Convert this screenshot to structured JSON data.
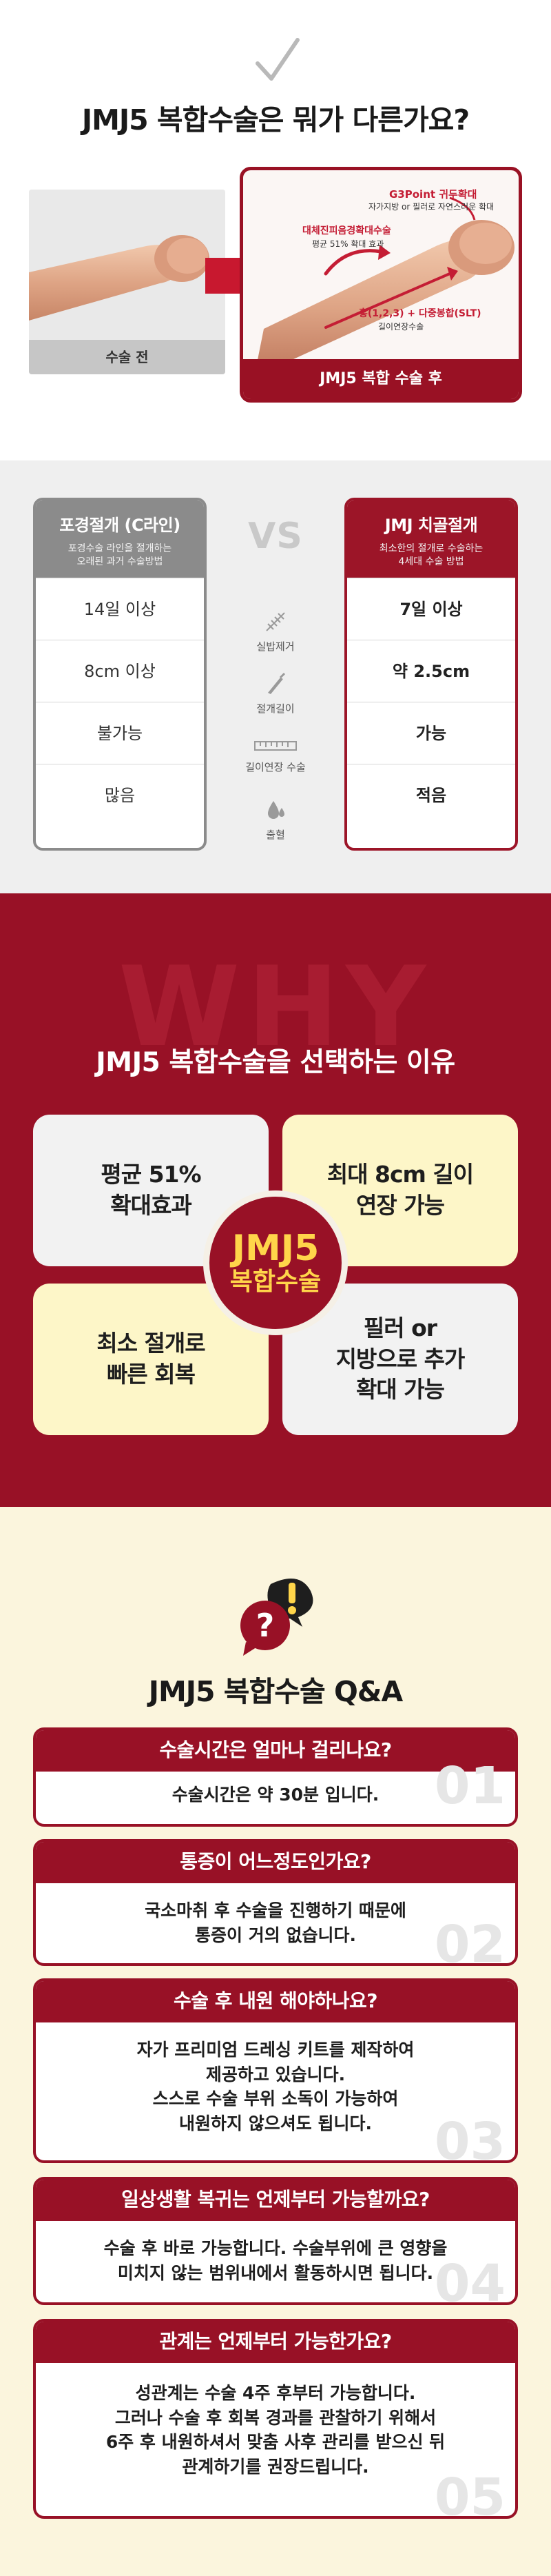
{
  "section1": {
    "title": "JMJ5 복합수술은 뭐가 다른가요?",
    "before_label": "수술 전",
    "after_label": "JMJ5 복합 수술 후",
    "annotations": {
      "g3point": "G3Point 귀두확대",
      "g3point_sub": "자가지방 or 필러로 자연스러운 확대",
      "dermal": "대체진피음경확대수술",
      "dermal_sub": "평균 51% 확대 효과",
      "slt": "홍(1,2,3) + 다중봉합(SLT)",
      "slt_sub": "길이연장수술"
    }
  },
  "section2": {
    "left": {
      "title": "포경절개 (C라인)",
      "subtitle_line1": "포경수술 라인을 절개하는",
      "subtitle_line2": "오래된 과거 수술방법",
      "rows": [
        "14일 이상",
        "8cm 이상",
        "불가능",
        "많음"
      ]
    },
    "vs": "VS",
    "middle": [
      "실밥제거",
      "절개길이",
      "길이연장 수술",
      "출혈"
    ],
    "right": {
      "title": "JMJ 치골절개",
      "subtitle_line1": "최소한의 절개로 수술하는",
      "subtitle_line2": "4세대 수술 방법",
      "rows": [
        "7일 이상",
        "약 2.5cm",
        "가능",
        "적음"
      ]
    }
  },
  "section3": {
    "bg_word": "WHY",
    "title": "JMJ5 복합수술을 선택하는 이유",
    "boxes": {
      "tl": [
        "평균 51%",
        "확대효과"
      ],
      "tr": [
        "최대 8cm 길이",
        "연장 가능"
      ],
      "bl": [
        "최소 절개로",
        "빠른 회복"
      ],
      "br": [
        "필러 or",
        "지방으로 추가",
        "확대 가능"
      ]
    },
    "circle": [
      "JMJ5",
      "복합수술"
    ]
  },
  "section4": {
    "title": "JMJ5 복합수술 Q&A",
    "items": [
      {
        "q": "수술시간은 얼마나 걸리나요?",
        "a": [
          "수술시간은 약 30분 입니다."
        ],
        "num": "01"
      },
      {
        "q": "통증이 어느정도인가요?",
        "a": [
          "국소마취 후 수술을 진행하기 때문에",
          "통증이 거의 없습니다."
        ],
        "num": "02"
      },
      {
        "q": "수술 후 내원 해야하나요?",
        "a": [
          "자가 프리미엄 드레싱 키트를 제작하여",
          "제공하고 있습니다.",
          "스스로 수술 부위 소독이 가능하여",
          "내원하지 않으셔도 됩니다."
        ],
        "num": "03"
      },
      {
        "q": "일상생활 복귀는 언제부터 가능할까요?",
        "a": [
          "수술 후 바로 가능합니다. 수술부위에 큰 영향을",
          "미치지 않는 범위내에서 활동하시면 됩니다."
        ],
        "num": "04"
      },
      {
        "q": "관계는 언제부터 가능한가요?",
        "a": [
          "성관계는 수술 4주 후부터 가능합니다.",
          "그러나 수술 후 회복 경과를 관찰하기 위해서",
          "6주 후 내원하셔서 맞춤 사후 관리를 받으신 뒤",
          "관계하기를 권장드립니다."
        ],
        "num": "05"
      }
    ]
  },
  "colors": {
    "brand_red": "#981126",
    "light_yellow": "#fdf6c8",
    "cream": "#fbf5dd",
    "gold": "#ffd54a"
  }
}
